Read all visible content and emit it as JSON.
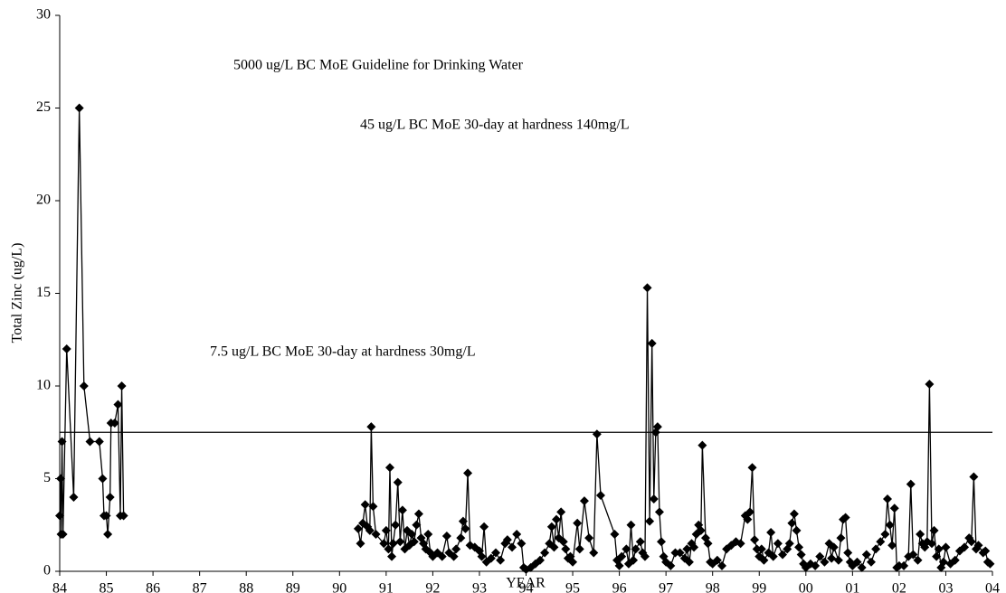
{
  "chart_data": {
    "type": "line",
    "x_label": "YEAR",
    "y_label": "Total Zinc (ug/L)",
    "xlim": [
      1984,
      2004
    ],
    "ylim": [
      0,
      30
    ],
    "yticks": [
      0,
      5,
      10,
      15,
      20,
      25,
      30
    ],
    "xticks": [
      {
        "value": 1984,
        "label": "84"
      },
      {
        "value": 1985,
        "label": "85"
      },
      {
        "value": 1986,
        "label": "86"
      },
      {
        "value": 1987,
        "label": "87"
      },
      {
        "value": 1988,
        "label": "88"
      },
      {
        "value": 1989,
        "label": "89"
      },
      {
        "value": 1990,
        "label": "90"
      },
      {
        "value": 1991,
        "label": "91"
      },
      {
        "value": 1992,
        "label": "92"
      },
      {
        "value": 1993,
        "label": "93"
      },
      {
        "value": 1994,
        "label": "94"
      },
      {
        "value": 1995,
        "label": "95"
      },
      {
        "value": 1996,
        "label": "96"
      },
      {
        "value": 1997,
        "label": "97"
      },
      {
        "value": 1998,
        "label": "98"
      },
      {
        "value": 1999,
        "label": "99"
      },
      {
        "value": 2000,
        "label": "00"
      },
      {
        "value": 2001,
        "label": "01"
      },
      {
        "value": 2002,
        "label": "02"
      },
      {
        "value": 2003,
        "label": "03"
      },
      {
        "value": 2004,
        "label": "04"
      }
    ],
    "color": "#000000",
    "marker": "diamond",
    "hlines": [
      {
        "value": 7.5,
        "label": "7.5 ug/L BC MoE 30-day at hardness 30mg/L"
      }
    ],
    "annotations": [
      "5000 ug/L BC MoE Guideline for Drinking Water",
      "45 ug/L BC MoE 30-day at hardness 140mg/L"
    ],
    "x": [
      1984.0,
      1984.02,
      1984.03,
      1984.05,
      1984.07,
      1984.15,
      1984.3,
      1984.42,
      1984.52,
      1984.65,
      1984.85,
      1984.92,
      1984.95,
      1985.0,
      1985.03,
      1985.08,
      1985.1,
      1985.18,
      1985.25,
      1985.3,
      1985.33,
      1985.37,
      null,
      1990.4,
      1990.45,
      1990.5,
      1990.55,
      1990.6,
      1990.65,
      1990.68,
      1990.72,
      1990.78,
      1990.95,
      1991.0,
      1991.05,
      1991.08,
      1991.12,
      1991.15,
      1991.2,
      1991.25,
      1991.3,
      1991.35,
      1991.4,
      1991.45,
      1991.5,
      1991.55,
      1991.6,
      1991.65,
      1991.7,
      1991.75,
      1991.8,
      1991.85,
      1991.9,
      1991.95,
      1992.0,
      1992.1,
      1992.2,
      1992.3,
      1992.35,
      1992.45,
      1992.5,
      1992.6,
      1992.65,
      1992.7,
      1992.75,
      1992.8,
      1992.9,
      1993.0,
      1993.05,
      1993.1,
      1993.15,
      1993.25,
      1993.35,
      1993.45,
      1993.55,
      1993.6,
      1993.7,
      1993.8,
      1993.9,
      1993.95,
      1994.0,
      1994.1,
      1994.2,
      1994.3,
      1994.4,
      1994.5,
      1994.55,
      1994.6,
      1994.65,
      1994.7,
      1994.75,
      1994.8,
      1994.85,
      1994.9,
      1994.95,
      1995.0,
      1995.1,
      1995.15,
      1995.25,
      1995.35,
      1995.45,
      1995.52,
      1995.6,
      1995.9,
      1995.95,
      1996.0,
      1996.05,
      1996.15,
      1996.2,
      1996.25,
      1996.3,
      1996.35,
      1996.45,
      1996.5,
      1996.55,
      1996.6,
      1996.65,
      1996.7,
      1996.74,
      1996.78,
      1996.82,
      1996.86,
      1996.9,
      1996.95,
      1997.0,
      1997.1,
      1997.2,
      1997.3,
      1997.4,
      1997.45,
      1997.5,
      1997.55,
      1997.6,
      1997.65,
      1997.7,
      1997.75,
      1997.78,
      1997.85,
      1997.9,
      1997.95,
      1998.0,
      1998.1,
      1998.2,
      1998.3,
      1998.4,
      1998.5,
      1998.6,
      1998.7,
      1998.75,
      1998.8,
      1998.85,
      1998.9,
      1998.95,
      1999.0,
      1999.05,
      1999.1,
      1999.2,
      1999.25,
      1999.3,
      1999.4,
      1999.5,
      1999.6,
      1999.65,
      1999.7,
      1999.75,
      1999.8,
      1999.85,
      1999.9,
      1999.95,
      2000.0,
      2000.1,
      2000.2,
      2000.3,
      2000.4,
      2000.5,
      2000.55,
      2000.6,
      2000.7,
      2000.75,
      2000.8,
      2000.85,
      2000.9,
      2000.95,
      2001.0,
      2001.1,
      2001.2,
      2001.3,
      2001.4,
      2001.5,
      2001.6,
      2001.7,
      2001.75,
      2001.8,
      2001.85,
      2001.9,
      2001.95,
      2002.0,
      2002.1,
      2002.2,
      2002.25,
      2002.3,
      2002.4,
      2002.45,
      2002.5,
      2002.55,
      2002.6,
      2002.65,
      2002.7,
      2002.75,
      2002.8,
      2002.85,
      2002.9,
      2002.95,
      2003.0,
      2003.1,
      2003.2,
      2003.3,
      2003.4,
      2003.5,
      2003.55,
      2003.6,
      2003.65,
      2003.7,
      2003.8,
      2003.85,
      2003.9,
      2003.95
    ],
    "values": [
      3,
      5,
      2,
      7,
      2,
      12,
      4,
      25,
      10,
      7,
      7,
      5,
      3,
      3,
      2,
      4,
      8,
      8,
      9,
      3,
      10,
      3,
      null,
      2.3,
      1.5,
      2.6,
      3.6,
      2.4,
      2.2,
      7.8,
      3.5,
      2.0,
      1.5,
      2.2,
      1.2,
      5.6,
      0.8,
      1.5,
      2.5,
      4.8,
      1.6,
      3.3,
      1.2,
      2.2,
      1.4,
      2.0,
      1.6,
      2.5,
      3.1,
      1.8,
      1.5,
      1.2,
      2.0,
      1.0,
      0.8,
      1.0,
      0.8,
      1.9,
      1.0,
      0.8,
      1.2,
      1.8,
      2.7,
      2.3,
      5.3,
      1.4,
      1.3,
      1.1,
      0.8,
      2.4,
      0.5,
      0.7,
      1.0,
      0.6,
      1.5,
      1.7,
      1.3,
      2.0,
      1.5,
      0.2,
      0.1,
      0.2,
      0.4,
      0.6,
      1.0,
      1.5,
      2.4,
      1.3,
      2.8,
      1.8,
      3.2,
      1.6,
      1.2,
      0.7,
      0.8,
      0.5,
      2.6,
      1.2,
      3.8,
      1.8,
      1.0,
      7.4,
      4.1,
      2.0,
      0.6,
      0.3,
      0.8,
      1.2,
      0.4,
      2.5,
      0.6,
      1.2,
      1.6,
      1.0,
      0.8,
      15.3,
      2.7,
      12.3,
      3.9,
      7.5,
      7.8,
      3.2,
      1.6,
      0.8,
      0.5,
      0.3,
      1.0,
      1.0,
      0.7,
      1.2,
      0.5,
      1.5,
      1.3,
      2.0,
      2.5,
      2.2,
      6.8,
      1.8,
      1.5,
      0.5,
      0.4,
      0.6,
      0.3,
      1.2,
      1.4,
      1.6,
      1.5,
      3.0,
      2.8,
      3.2,
      5.6,
      1.7,
      1.2,
      0.8,
      1.2,
      0.6,
      1.0,
      2.1,
      0.8,
      1.5,
      0.9,
      1.2,
      1.5,
      2.6,
      3.1,
      2.2,
      1.3,
      0.9,
      0.4,
      0.2,
      0.4,
      0.3,
      0.8,
      0.5,
      1.5,
      0.7,
      1.3,
      0.6,
      1.8,
      2.8,
      2.9,
      1.0,
      0.5,
      0.3,
      0.5,
      0.2,
      0.9,
      0.5,
      1.2,
      1.6,
      2.0,
      3.9,
      2.5,
      1.4,
      3.4,
      0.2,
      0.3,
      0.3,
      0.8,
      4.7,
      0.9,
      0.6,
      2.0,
      1.5,
      1.3,
      1.6,
      10.1,
      1.5,
      2.2,
      0.8,
      1.2,
      0.2,
      0.5,
      1.3,
      0.4,
      0.6,
      1.1,
      1.3,
      1.8,
      1.6,
      5.1,
      1.2,
      1.4,
      1.0,
      1.1,
      0.5,
      0.4
    ]
  }
}
